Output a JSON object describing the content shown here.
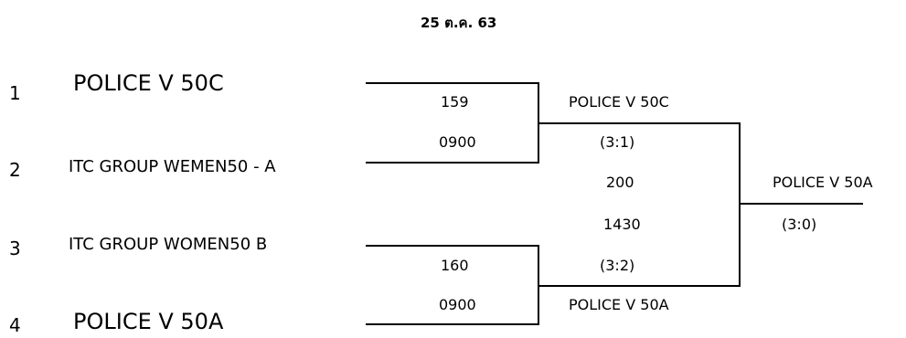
{
  "header": {
    "date": "25 ต.ค. 63"
  },
  "entries": [
    {
      "seed": "1",
      "team": "POLICE V 50C"
    },
    {
      "seed": "2",
      "team": "ITC GROUP WEMEN50 - A"
    },
    {
      "seed": "3",
      "team": "ITC GROUP WOMEN50 B"
    },
    {
      "seed": "4",
      "team": "POLICE V 50A"
    }
  ],
  "matches": {
    "m1": {
      "number": "159",
      "time": "0900"
    },
    "m2": {
      "number": "160",
      "time": "0900"
    },
    "semi": {
      "number": "200",
      "time": "1430"
    }
  },
  "results": {
    "semi_top_winner": "POLICE V 50C",
    "semi_top_score": "(3:1)",
    "semi_bottom_score": "(3:2)",
    "semi_bottom_winner": "POLICE V 50A",
    "final_winner": "POLICE V 50A",
    "final_score": "(3:0)"
  }
}
